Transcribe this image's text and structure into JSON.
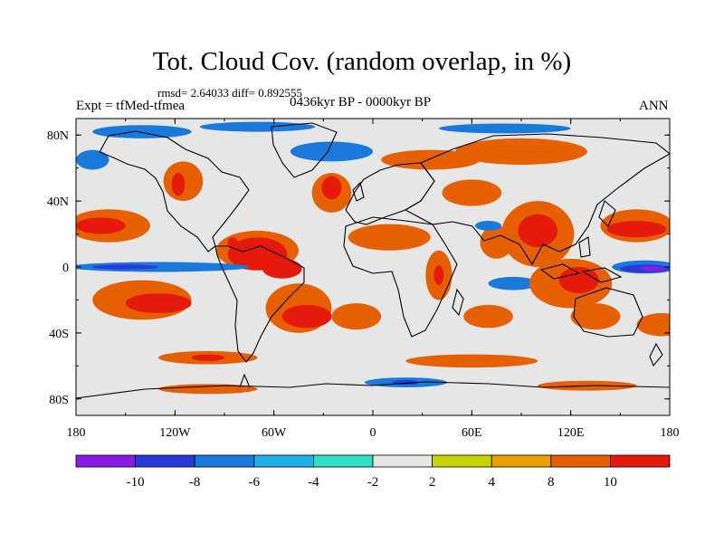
{
  "header": {
    "title": "Tot. Cloud Cov. (random overlap, in %)",
    "stats": "rmsd= 2.64033 diff= 0.892555",
    "experiment": "Expt = tfMed-tfmea",
    "period": "0436kyr BP - 0000kyr BP",
    "season": "ANN"
  },
  "map": {
    "x_ticks": [
      "180",
      "120W",
      "60W",
      "0",
      "60E",
      "120E",
      "180"
    ],
    "y_ticks": [
      "80N",
      "40N",
      "0",
      "40S",
      "80S"
    ],
    "lon_range": [
      -180,
      180
    ],
    "lat_range": [
      -90,
      90
    ],
    "background": "#e6e6e6",
    "regions": [
      {
        "name": "arctic-teal-west",
        "lon": -140,
        "lat": 82,
        "rx": 30,
        "ry": 4,
        "level": -3
      },
      {
        "name": "arctic-teal-center",
        "lon": -70,
        "lat": 85,
        "rx": 35,
        "ry": 3,
        "level": -3
      },
      {
        "name": "arctic-teal-east",
        "lon": 80,
        "lat": 84,
        "rx": 40,
        "ry": 3,
        "level": -3
      },
      {
        "name": "north-atlantic-teal",
        "lon": -25,
        "lat": 70,
        "rx": 25,
        "ry": 6,
        "level": -3
      },
      {
        "name": "north-pacific-teal",
        "lon": -170,
        "lat": 65,
        "rx": 10,
        "ry": 6,
        "level": -3
      },
      {
        "name": "europe-yellow",
        "lon": 35,
        "lat": 65,
        "rx": 30,
        "ry": 6,
        "level": 3
      },
      {
        "name": "siberia-yellow",
        "lon": 90,
        "lat": 70,
        "rx": 40,
        "ry": 8,
        "level": 3
      },
      {
        "name": "north-america-yellow",
        "lon": -115,
        "lat": 52,
        "rx": 12,
        "ry": 12,
        "level": 3
      },
      {
        "name": "north-america-orange",
        "lon": -118,
        "lat": 50,
        "rx": 4,
        "ry": 7,
        "level": 5
      },
      {
        "name": "atlantic-north-yellow",
        "lon": -25,
        "lat": 45,
        "rx": 12,
        "ry": 12,
        "level": 3
      },
      {
        "name": "atlantic-north-orange",
        "lon": -25,
        "lat": 48,
        "rx": 6,
        "ry": 7,
        "level": 5
      },
      {
        "name": "central-asia-yellow",
        "lon": 60,
        "lat": 45,
        "rx": 18,
        "ry": 8,
        "level": 3
      },
      {
        "name": "pacific-north-yellow",
        "lon": -160,
        "lat": 25,
        "rx": 25,
        "ry": 10,
        "level": 3
      },
      {
        "name": "pacific-north-orange",
        "lon": -165,
        "lat": 25,
        "rx": 15,
        "ry": 5,
        "level": 5
      },
      {
        "name": "west-pacific-yellow",
        "lon": 160,
        "lat": 25,
        "rx": 22,
        "ry": 10,
        "level": 3
      },
      {
        "name": "west-pacific-orange",
        "lon": 160,
        "lat": 23,
        "rx": 18,
        "ry": 5,
        "level": 5
      },
      {
        "name": "south-asia-yellow",
        "lon": 100,
        "lat": 20,
        "rx": 22,
        "ry": 20,
        "level": 3
      },
      {
        "name": "south-asia-orange",
        "lon": 100,
        "lat": 22,
        "rx": 12,
        "ry": 10,
        "level": 5
      },
      {
        "name": "south-asia-red",
        "lon": 98,
        "lat": 22,
        "rx": 4,
        "ry": 3,
        "level": 6
      },
      {
        "name": "india-yellow",
        "lon": 75,
        "lat": 15,
        "rx": 10,
        "ry": 10,
        "level": 3
      },
      {
        "name": "arabia-teal",
        "lon": 70,
        "lat": 25,
        "rx": 8,
        "ry": 3,
        "level": -3
      },
      {
        "name": "east-africa-yellow",
        "lon": 40,
        "lat": -5,
        "rx": 8,
        "ry": 15,
        "level": 3
      },
      {
        "name": "east-africa-orange",
        "lon": 40,
        "lat": -5,
        "rx": 3,
        "ry": 6,
        "level": 5
      },
      {
        "name": "sahara-yellow",
        "lon": 10,
        "lat": 18,
        "rx": 25,
        "ry": 8,
        "level": 3
      },
      {
        "name": "caribbean-yellow",
        "lon": -70,
        "lat": 10,
        "rx": 25,
        "ry": 12,
        "level": 3
      },
      {
        "name": "caribbean-orange",
        "lon": -70,
        "lat": 8,
        "rx": 18,
        "ry": 10,
        "level": 5
      },
      {
        "name": "amazon-red",
        "lon": -55,
        "lat": -1,
        "rx": 12,
        "ry": 6,
        "level": 6
      },
      {
        "name": "amazon-deep-red",
        "lon": -58,
        "lat": 0,
        "rx": 5,
        "ry": 3,
        "level": 7
      },
      {
        "name": "central-america-red",
        "lon": -85,
        "lat": 15,
        "rx": 3,
        "ry": 3,
        "level": 6
      },
      {
        "name": "equatorial-pacific-teal",
        "lon": -130,
        "lat": 0,
        "rx": 55,
        "ry": 3,
        "level": -3
      },
      {
        "name": "equatorial-pacific-blue",
        "lon": -150,
        "lat": 0,
        "rx": 20,
        "ry": 1.5,
        "level": -4
      },
      {
        "name": "south-pacific-yellow",
        "lon": -140,
        "lat": -20,
        "rx": 30,
        "ry": 12,
        "level": 3
      },
      {
        "name": "south-pacific-orange",
        "lon": -130,
        "lat": -22,
        "rx": 20,
        "ry": 6,
        "level": 5
      },
      {
        "name": "south-america-yellow",
        "lon": -45,
        "lat": -25,
        "rx": 20,
        "ry": 15,
        "level": 3
      },
      {
        "name": "south-america-orange",
        "lon": -40,
        "lat": -30,
        "rx": 15,
        "ry": 7,
        "level": 5
      },
      {
        "name": "south-atlantic-yellow",
        "lon": -10,
        "lat": -30,
        "rx": 15,
        "ry": 8,
        "level": 3
      },
      {
        "name": "indian-ocean-teal",
        "lon": 85,
        "lat": -10,
        "rx": 15,
        "ry": 4,
        "level": -3
      },
      {
        "name": "indonesia-yellow",
        "lon": 120,
        "lat": -10,
        "rx": 25,
        "ry": 15,
        "level": 3
      },
      {
        "name": "indonesia-orange",
        "lon": 125,
        "lat": -8,
        "rx": 12,
        "ry": 8,
        "level": 5
      },
      {
        "name": "west-pacific-teal",
        "lon": 165,
        "lat": 0,
        "rx": 20,
        "ry": 4,
        "level": -3
      },
      {
        "name": "west-pacific-blue",
        "lon": 165,
        "lat": -1,
        "rx": 15,
        "ry": 2.5,
        "level": -4
      },
      {
        "name": "west-pacific-violet",
        "lon": 170,
        "lat": -1,
        "rx": 8,
        "ry": 1.5,
        "level": -5
      },
      {
        "name": "australia-yellow",
        "lon": 135,
        "lat": -30,
        "rx": 15,
        "ry": 8,
        "level": 3
      },
      {
        "name": "south-indian-yellow",
        "lon": 70,
        "lat": -30,
        "rx": 15,
        "ry": 7,
        "level": 3
      },
      {
        "name": "south-pacific-east-yellow",
        "lon": 175,
        "lat": -35,
        "rx": 15,
        "ry": 7,
        "level": 3
      },
      {
        "name": "southern-ocean-yellow-west",
        "lon": -100,
        "lat": -55,
        "rx": 30,
        "ry": 4,
        "level": 3
      },
      {
        "name": "southern-ocean-yellow-east",
        "lon": 60,
        "lat": -57,
        "rx": 40,
        "ry": 4,
        "level": 3
      },
      {
        "name": "southern-ocean-orange",
        "lon": -100,
        "lat": -55,
        "rx": 10,
        "ry": 2,
        "level": 5
      },
      {
        "name": "antarctic-teal",
        "lon": 20,
        "lat": -70,
        "rx": 25,
        "ry": 3,
        "level": -3
      },
      {
        "name": "antarctic-blue",
        "lon": 20,
        "lat": -70,
        "rx": 8,
        "ry": 1.5,
        "level": -4
      },
      {
        "name": "antarctic-yellow-west",
        "lon": -100,
        "lat": -74,
        "rx": 30,
        "ry": 3,
        "level": 3
      },
      {
        "name": "antarctic-yellow-east",
        "lon": 130,
        "lat": -72,
        "rx": 30,
        "ry": 3,
        "level": 3
      }
    ]
  },
  "colorbar": {
    "labels": [
      "-10",
      "-8",
      "-6",
      "-4",
      "-2",
      "2",
      "4",
      "8",
      "10"
    ],
    "colors": [
      "#8a1ae6",
      "#2a3ad8",
      "#1a7adc",
      "#22b0e8",
      "#2de0c8",
      "#e6e6e6",
      "#c8d400",
      "#e6a000",
      "#e66000",
      "#e61a0a"
    ]
  }
}
